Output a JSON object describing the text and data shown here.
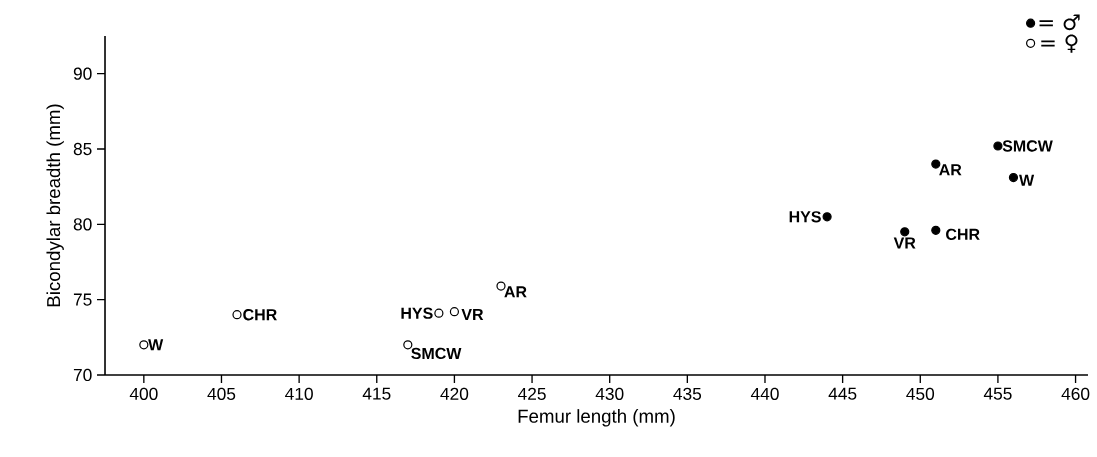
{
  "chart_data": {
    "type": "scatter",
    "xlabel": "Femur length (mm)",
    "ylabel": "Bicondylar breadth (mm)",
    "xlim": [
      397.5,
      460.8
    ],
    "ylim": [
      70,
      92.5
    ],
    "xticks": [
      400,
      405,
      410,
      415,
      420,
      425,
      430,
      435,
      440,
      445,
      450,
      455,
      460
    ],
    "yticks": [
      70,
      75,
      80,
      85,
      90
    ],
    "grid": false,
    "legend": "top right",
    "marker": "circle",
    "series": [
      {
        "name": "= ♂",
        "color": "#000000",
        "x": [
          444,
          449,
          451,
          451,
          455,
          456
        ],
        "values": [
          80.5,
          79.5,
          79.6,
          84,
          85.2,
          83.1
        ]
      },
      {
        "name": "= ♀",
        "color": "#ffffff",
        "x": [
          400,
          406,
          419,
          420,
          417,
          423
        ],
        "values": [
          72,
          74,
          74.1,
          74.2,
          72,
          75.9
        ]
      }
    ],
    "annotations": [
      {
        "text": "W",
        "x": 400,
        "y": 72
      },
      {
        "text": "CHR",
        "x": 406,
        "y": 74
      },
      {
        "text": "HYS",
        "x": 419,
        "y": 74.1
      },
      {
        "text": "VR",
        "x": 420,
        "y": 74.2
      },
      {
        "text": "SMCW",
        "x": 417,
        "y": 72
      },
      {
        "text": "AR",
        "x": 423,
        "y": 75.9
      },
      {
        "text": "HYS",
        "x": 444,
        "y": 80.5
      },
      {
        "text": "VR",
        "x": 449,
        "y": 79.5
      },
      {
        "text": "CHR",
        "x": 451,
        "y": 79.6
      },
      {
        "text": "AR",
        "x": 451,
        "y": 84
      },
      {
        "text": "SMCW",
        "x": 455,
        "y": 85.2
      },
      {
        "text": "W",
        "x": 456,
        "y": 83.1
      }
    ]
  }
}
